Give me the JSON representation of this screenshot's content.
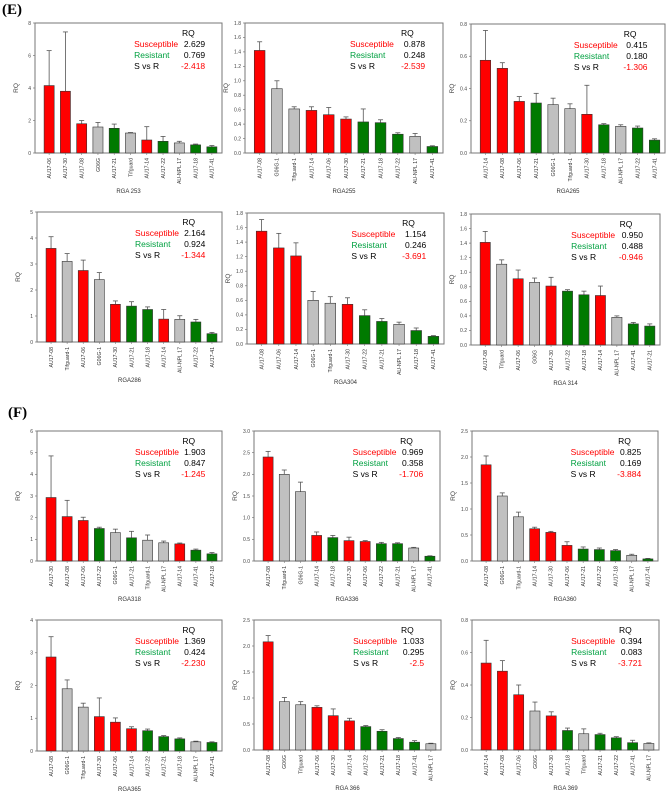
{
  "figure": {
    "panel_labels": [
      "(E)",
      "(F)"
    ]
  },
  "colors": {
    "susceptible": "#ff0000",
    "resistant": "#007a00",
    "check": "#c0c0c0",
    "legend_susceptible": "#ff0000",
    "legend_resistant": "#00a040",
    "svr_value": "#ff0000"
  },
  "chart_data": [
    {
      "type": "bar",
      "title": "RGA 253",
      "ylabel": "RQ",
      "ylim": [
        0,
        8
      ],
      "yticks": [
        "0",
        "2",
        "4",
        "6",
        "8"
      ],
      "categories": [
        "AU17-06",
        "AU17-30",
        "AU17-08",
        "G06G",
        "AU17-21",
        "Tifguard",
        "AU17-14",
        "AU17-22",
        "AU-NPL 17",
        "AU17-18",
        "AU17-41"
      ],
      "values": [
        4.15,
        3.8,
        1.8,
        1.6,
        1.52,
        1.23,
        0.8,
        0.72,
        0.62,
        0.5,
        0.38
      ],
      "errors": [
        2.15,
        3.65,
        0.2,
        0.28,
        0.26,
        0.03,
        0.82,
        0.3,
        0.1,
        0.05,
        0.08
      ],
      "groups": [
        "susceptible",
        "susceptible",
        "susceptible",
        "check",
        "resistant",
        "check",
        "susceptible",
        "resistant",
        "check",
        "resistant",
        "resistant"
      ],
      "legend": {
        "header": "RQ",
        "susceptible_label": "Susceptible",
        "susceptible_value": "2.629",
        "resistant_label": "Resistant",
        "resistant_value": "0.769",
        "svr_label": "S vs R",
        "svr_value": "-2.418"
      }
    },
    {
      "type": "bar",
      "title": "RGA255",
      "ylabel": "RQ",
      "ylim": [
        0,
        1.8
      ],
      "yticks": [
        "0.0",
        "0.2",
        "0.4",
        "0.6",
        "0.8",
        "1.0",
        "1.2",
        "1.4",
        "1.6",
        "1.8"
      ],
      "categories": [
        "AU17-08",
        "G06G-1",
        "Tifguard-1",
        "AU17-14",
        "AU17-06",
        "AU17-30",
        "AU17-21",
        "AU17-18",
        "AU17-22",
        "AU-NPL 17",
        "AU17-41"
      ],
      "values": [
        1.42,
        0.89,
        0.61,
        0.59,
        0.53,
        0.47,
        0.43,
        0.42,
        0.26,
        0.23,
        0.09
      ],
      "errors": [
        0.12,
        0.11,
        0.03,
        0.05,
        0.1,
        0.03,
        0.18,
        0.04,
        0.02,
        0.04,
        0.01
      ],
      "groups": [
        "susceptible",
        "check",
        "check",
        "susceptible",
        "susceptible",
        "susceptible",
        "resistant",
        "resistant",
        "resistant",
        "check",
        "resistant"
      ],
      "legend": {
        "header": "RQ",
        "susceptible_label": "Susceptible",
        "susceptible_value": "0.878",
        "resistant_label": "Resistant",
        "resistant_value": "0.248",
        "svr_label": "S vs R",
        "svr_value": "-2.539"
      }
    },
    {
      "type": "bar",
      "title": "RGA265",
      "ylabel": "RQ",
      "ylim": [
        0,
        0.8
      ],
      "yticks": [
        "0.0",
        "0.2",
        "0.4",
        "0.6",
        "0.8"
      ],
      "categories": [
        "AU17-14",
        "AU17-08",
        "AU17-06",
        "AU17-21",
        "G06G-1",
        "Tifguard-1",
        "AU17-30",
        "AU17-18",
        "AU-NPL 17",
        "AU17-22",
        "AU17-41"
      ],
      "values": [
        0.575,
        0.525,
        0.32,
        0.31,
        0.3,
        0.275,
        0.24,
        0.175,
        0.165,
        0.155,
        0.08
      ],
      "errors": [
        0.185,
        0.035,
        0.03,
        0.06,
        0.04,
        0.03,
        0.18,
        0.007,
        0.01,
        0.012,
        0.008
      ],
      "groups": [
        "susceptible",
        "susceptible",
        "susceptible",
        "resistant",
        "check",
        "check",
        "susceptible",
        "resistant",
        "check",
        "resistant",
        "resistant"
      ],
      "legend": {
        "header": "RQ",
        "susceptible_label": "Susceptible",
        "susceptible_value": "0.415",
        "resistant_label": "Resistant",
        "resistant_value": "0.180",
        "svr_label": "S vs R",
        "svr_value": "-1.306"
      }
    },
    {
      "type": "bar",
      "title": "RGA286",
      "ylabel": "RQ",
      "ylim": [
        0,
        5
      ],
      "yticks": [
        "0",
        "1",
        "2",
        "3",
        "4",
        "5"
      ],
      "categories": [
        "AU17-08",
        "Tifguard-1",
        "AU17-06",
        "G06G-1",
        "AU17-30",
        "AU17-21",
        "AU17-18",
        "AU17-14",
        "AU-NPL 17",
        "AU17-22",
        "AU17-41"
      ],
      "values": [
        3.6,
        3.1,
        2.75,
        2.4,
        1.45,
        1.38,
        1.25,
        0.88,
        0.87,
        0.77,
        0.32
      ],
      "errors": [
        0.45,
        0.3,
        0.4,
        0.27,
        0.13,
        0.17,
        0.1,
        0.37,
        0.14,
        0.1,
        0.05
      ],
      "groups": [
        "susceptible",
        "check",
        "susceptible",
        "check",
        "susceptible",
        "resistant",
        "resistant",
        "susceptible",
        "check",
        "resistant",
        "resistant"
      ],
      "legend": {
        "header": "RQ",
        "susceptible_label": "Susceptible",
        "susceptible_value": "2.164",
        "resistant_label": "Resistant",
        "resistant_value": "0.924",
        "svr_label": "S vs R",
        "svr_value": "-1.344"
      }
    },
    {
      "type": "bar",
      "title": "RGA304",
      "ylabel": "RQ",
      "ylim": [
        0,
        1.8
      ],
      "yticks": [
        "0.0",
        "0.2",
        "0.4",
        "0.6",
        "0.8",
        "1.0",
        "1.2",
        "1.4",
        "1.6",
        "1.8"
      ],
      "categories": [
        "AU17-08",
        "AU17-06",
        "AU17-14",
        "G06G-1",
        "Tifguard-1",
        "AU17-30",
        "AU17-22",
        "AU17-21",
        "AU-NPL 17",
        "AU17-18",
        "AU17-41"
      ],
      "values": [
        1.55,
        1.32,
        1.21,
        0.6,
        0.56,
        0.545,
        0.39,
        0.31,
        0.27,
        0.185,
        0.105
      ],
      "errors": [
        0.16,
        0.2,
        0.18,
        0.12,
        0.09,
        0.09,
        0.08,
        0.04,
        0.03,
        0.035,
        0.01
      ],
      "groups": [
        "susceptible",
        "susceptible",
        "susceptible",
        "check",
        "check",
        "susceptible",
        "resistant",
        "resistant",
        "check",
        "resistant",
        "resistant"
      ],
      "legend": {
        "header": "RQ",
        "susceptible_label": "Susceptible",
        "susceptible_value": "1.154",
        "resistant_label": "Resistant",
        "resistant_value": "0.246",
        "svr_label": "S vs R",
        "svr_value": "-3.691"
      }
    },
    {
      "type": "bar",
      "title": "RGA 314",
      "ylabel": "RQ",
      "ylim": [
        0,
        1.8
      ],
      "yticks": [
        "0.0",
        "0.2",
        "0.4",
        "0.6",
        "0.8",
        "1.0",
        "1.2",
        "1.4",
        "1.6",
        "1.8"
      ],
      "categories": [
        "AU17-08",
        "Tifguard",
        "AU17-06",
        "G06G",
        "AU17-30",
        "AU17-22",
        "AU17-18",
        "AU17-14",
        "AU-NPL 17",
        "AU17-41",
        "AU17-21"
      ],
      "values": [
        1.41,
        1.11,
        0.91,
        0.86,
        0.81,
        0.74,
        0.69,
        0.68,
        0.38,
        0.29,
        0.26
      ],
      "errors": [
        0.15,
        0.06,
        0.12,
        0.06,
        0.12,
        0.02,
        0.05,
        0.13,
        0.02,
        0.02,
        0.03
      ],
      "groups": [
        "susceptible",
        "check",
        "susceptible",
        "check",
        "susceptible",
        "resistant",
        "resistant",
        "susceptible",
        "check",
        "resistant",
        "resistant"
      ],
      "legend": {
        "header": "RQ",
        "susceptible_label": "Susceptible",
        "susceptible_value": "0.950",
        "resistant_label": "Resistant",
        "resistant_value": "0.488",
        "svr_label": "S vs R",
        "svr_value": "-0.946"
      }
    },
    {
      "type": "bar",
      "title": "RGA318",
      "ylabel": "RQ",
      "ylim": [
        0,
        6
      ],
      "yticks": [
        "0",
        "1",
        "2",
        "3",
        "4",
        "5",
        "6"
      ],
      "categories": [
        "AU17-30",
        "AU17-08",
        "AU17-06",
        "AU17-22",
        "G06G-1",
        "AU17-21",
        "Tifguard-1",
        "AU-NPL 17",
        "AU17-14",
        "AU17-41",
        "AU17-18"
      ],
      "values": [
        2.93,
        2.05,
        1.87,
        1.5,
        1.31,
        1.07,
        0.96,
        0.84,
        0.79,
        0.5,
        0.33
      ],
      "errors": [
        1.92,
        0.75,
        0.15,
        0.06,
        0.16,
        0.3,
        0.24,
        0.08,
        0.04,
        0.05,
        0.06
      ],
      "groups": [
        "susceptible",
        "susceptible",
        "susceptible",
        "resistant",
        "check",
        "resistant",
        "check",
        "check",
        "susceptible",
        "resistant",
        "resistant"
      ],
      "legend": {
        "header": "RQ",
        "susceptible_label": "Susceptible",
        "susceptible_value": "1.903",
        "resistant_label": "Resistant",
        "resistant_value": "0.847",
        "svr_label": "S vs R",
        "svr_value": "-1.245"
      }
    },
    {
      "type": "bar",
      "title": "RGA336",
      "ylabel": "RQ",
      "ylim": [
        0,
        3
      ],
      "yticks": [
        "0.0",
        "0.5",
        "1.0",
        "1.5",
        "2.0",
        "2.5",
        "3.0"
      ],
      "categories": [
        "AU17-08",
        "Tifguard-1",
        "G06G-1",
        "AU17-14",
        "AU17-18",
        "AU17-30",
        "AU17-06",
        "AU17-22",
        "AU17-21",
        "AU-NPL 17",
        "AU17-41"
      ],
      "values": [
        2.4,
        2.0,
        1.6,
        0.59,
        0.54,
        0.47,
        0.45,
        0.4,
        0.4,
        0.3,
        0.11
      ],
      "errors": [
        0.13,
        0.1,
        0.22,
        0.08,
        0.05,
        0.08,
        0.02,
        0.03,
        0.02,
        0.015,
        0.01
      ],
      "groups": [
        "susceptible",
        "check",
        "check",
        "susceptible",
        "resistant",
        "susceptible",
        "susceptible",
        "resistant",
        "resistant",
        "check",
        "resistant"
      ],
      "legend": {
        "header": "RQ",
        "susceptible_label": "Susceptible",
        "susceptible_value": "0.969",
        "resistant_label": "Resistant",
        "resistant_value": "0.358",
        "svr_label": "S vs R",
        "svr_value": "-1.706"
      }
    },
    {
      "type": "bar",
      "title": "RGA360",
      "ylabel": "RQ",
      "ylim": [
        0,
        2.5
      ],
      "yticks": [
        "0.0",
        "0.5",
        "1.0",
        "1.5",
        "2.0",
        "2.5"
      ],
      "categories": [
        "AU17-08",
        "G06G-1",
        "Tifguard-1",
        "AU17-14",
        "AU17-30",
        "AU17-06",
        "AU17-21",
        "AU17-22",
        "AU17-18",
        "AU-NPL 17",
        "AU17-41"
      ],
      "values": [
        1.85,
        1.25,
        0.85,
        0.62,
        0.55,
        0.3,
        0.23,
        0.22,
        0.2,
        0.11,
        0.04
      ],
      "errors": [
        0.17,
        0.06,
        0.09,
        0.03,
        0.02,
        0.07,
        0.04,
        0.03,
        0.02,
        0.02,
        0.01
      ],
      "groups": [
        "susceptible",
        "check",
        "check",
        "susceptible",
        "susceptible",
        "susceptible",
        "resistant",
        "resistant",
        "resistant",
        "check",
        "resistant"
      ],
      "legend": {
        "header": "RQ",
        "susceptible_label": "Susceptible",
        "susceptible_value": "0.825",
        "resistant_label": "Resistant",
        "resistant_value": "0.169",
        "svr_label": "S vs R",
        "svr_value": "-3.884"
      }
    },
    {
      "type": "bar",
      "title": "RGA365",
      "ylabel": "RQ",
      "ylim": [
        0,
        4
      ],
      "yticks": [
        "0",
        "1",
        "2",
        "3",
        "4"
      ],
      "categories": [
        "AU17-08",
        "G06G-1",
        "Tifguard-1",
        "AU17-30",
        "AU17-06",
        "AU17-14",
        "AU17-22",
        "AU17-21",
        "AU17-18",
        "AU-NPL 17",
        "AU17-41"
      ],
      "values": [
        2.87,
        1.9,
        1.34,
        1.05,
        0.88,
        0.68,
        0.62,
        0.44,
        0.37,
        0.28,
        0.26
      ],
      "errors": [
        0.62,
        0.27,
        0.12,
        0.57,
        0.13,
        0.06,
        0.05,
        0.03,
        0.03,
        0.02,
        0.02
      ],
      "groups": [
        "susceptible",
        "check",
        "check",
        "susceptible",
        "susceptible",
        "susceptible",
        "resistant",
        "resistant",
        "resistant",
        "check",
        "resistant"
      ],
      "legend": {
        "header": "RQ",
        "susceptible_label": "Susceptible",
        "susceptible_value": "1.369",
        "resistant_label": "Resistant",
        "resistant_value": "0.424",
        "svr_label": "S vs R",
        "svr_value": "-2.230"
      }
    },
    {
      "type": "bar",
      "title": "RGA 366",
      "ylabel": "RQ",
      "ylim": [
        0,
        2.5
      ],
      "yticks": [
        "0.0",
        "0.5",
        "1.0",
        "1.5",
        "2.0",
        "2.5"
      ],
      "categories": [
        "AU17-08",
        "G06G",
        "Tifguard",
        "AU17-06",
        "AU17-30",
        "AU17-14",
        "AU17-22",
        "AU17-21",
        "AU17-18",
        "AU17-41",
        "AU-NPL 17"
      ],
      "values": [
        2.08,
        0.93,
        0.87,
        0.82,
        0.66,
        0.56,
        0.45,
        0.36,
        0.22,
        0.15,
        0.12
      ],
      "errors": [
        0.12,
        0.08,
        0.06,
        0.03,
        0.13,
        0.05,
        0.02,
        0.03,
        0.02,
        0.03,
        0.01
      ],
      "groups": [
        "susceptible",
        "check",
        "check",
        "susceptible",
        "susceptible",
        "susceptible",
        "resistant",
        "resistant",
        "resistant",
        "resistant",
        "check"
      ],
      "legend": {
        "header": "RQ",
        "susceptible_label": "Susceptible",
        "susceptible_value": "1.033",
        "resistant_label": "Resistant",
        "resistant_value": "0.295",
        "svr_label": "S vs R",
        "svr_value": "-2.5"
      }
    },
    {
      "type": "bar",
      "title": "RGA 369",
      "ylabel": "RQ",
      "ylim": [
        0,
        0.8
      ],
      "yticks": [
        "0.0",
        "0.2",
        "0.4",
        "0.6",
        "0.8"
      ],
      "categories": [
        "AU17-14",
        "AU17-08",
        "AU17-06",
        "G06G",
        "AU17-30",
        "AU17-18",
        "Tifguard",
        "AU17-21",
        "AU17-22",
        "AU17-41",
        "AU-NPL 17"
      ],
      "values": [
        0.535,
        0.485,
        0.34,
        0.24,
        0.21,
        0.12,
        0.1,
        0.095,
        0.075,
        0.045,
        0.04
      ],
      "errors": [
        0.14,
        0.065,
        0.06,
        0.055,
        0.025,
        0.015,
        0.03,
        0.008,
        0.007,
        0.015,
        0.004
      ],
      "groups": [
        "susceptible",
        "susceptible",
        "susceptible",
        "check",
        "susceptible",
        "resistant",
        "check",
        "resistant",
        "resistant",
        "resistant",
        "check"
      ],
      "legend": {
        "header": "RQ",
        "susceptible_label": "Susceptible",
        "susceptible_value": "0.394",
        "resistant_label": "Resistant",
        "resistant_value": "0.083",
        "svr_label": "S vs R",
        "svr_value": "-3.721"
      }
    }
  ]
}
